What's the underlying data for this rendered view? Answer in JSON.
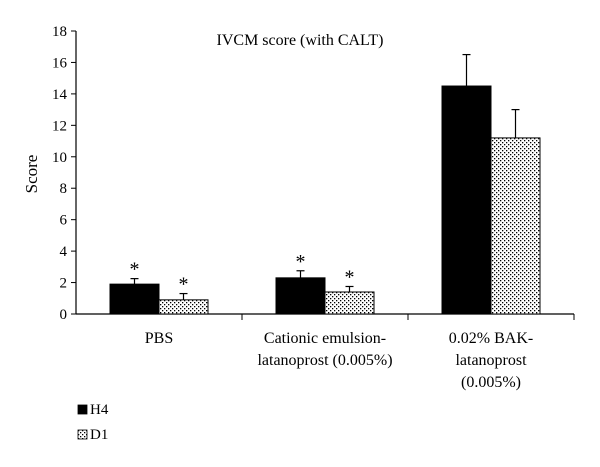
{
  "chart_data": {
    "type": "bar",
    "title": "IVCM score (with CALT)",
    "xlabel": "",
    "ylabel": "Score",
    "ylim": [
      0,
      18
    ],
    "yticks": [
      0,
      2,
      4,
      6,
      8,
      10,
      12,
      14,
      16,
      18
    ],
    "grid": false,
    "legend_position": "bottom-left",
    "categories": [
      [
        "PBS"
      ],
      [
        "Cationic emulsion-",
        "latanoprost (0.005%)"
      ],
      [
        "0.02% BAK-",
        "latanoprost",
        "(0.005%)"
      ]
    ],
    "series": [
      {
        "name": "H4",
        "color": "#000000",
        "pattern": "solid",
        "values": [
          1.9,
          2.3,
          14.5
        ],
        "errors": [
          0.35,
          0.45,
          2.0
        ],
        "annotations": [
          "*",
          "*",
          ""
        ]
      },
      {
        "name": "D1",
        "color": "#ffffff",
        "pattern": "dotted-checker",
        "values": [
          0.9,
          1.4,
          11.2
        ],
        "errors": [
          0.4,
          0.35,
          1.8
        ],
        "annotations": [
          "*",
          "*",
          ""
        ]
      }
    ]
  }
}
